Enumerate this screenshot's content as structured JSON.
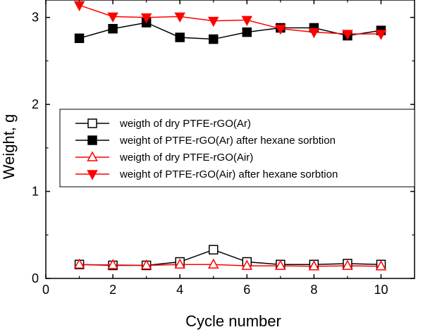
{
  "chart_data": {
    "type": "line",
    "title": "",
    "xlabel": "Cycle number",
    "ylabel": "Weight, g",
    "xlim": [
      0,
      11
    ],
    "ylim": [
      0,
      3.2
    ],
    "xticks": [
      0,
      2,
      4,
      6,
      8,
      10
    ],
    "yticks": [
      0,
      1,
      2,
      3
    ],
    "legend_position": "center",
    "x": [
      1,
      2,
      3,
      4,
      5,
      6,
      7,
      8,
      9,
      10
    ],
    "series": [
      {
        "name": "weigth of dry PTFE-rGO(Ar)",
        "color": "#000000",
        "marker": "square-open",
        "values": [
          0.16,
          0.15,
          0.15,
          0.19,
          0.33,
          0.19,
          0.16,
          0.16,
          0.17,
          0.16
        ]
      },
      {
        "name": "weight of PTFE-rGO(Ar) after hexane sorbtion",
        "color": "#000000",
        "marker": "square-filled",
        "values": [
          2.76,
          2.87,
          2.94,
          2.77,
          2.75,
          2.83,
          2.88,
          2.88,
          2.79,
          2.85
        ]
      },
      {
        "name": "weigth of dry PTFE-rGO(Air)",
        "color": "#ff0000",
        "marker": "triangle-up-open",
        "values": [
          0.16,
          0.155,
          0.15,
          0.16,
          0.16,
          0.145,
          0.145,
          0.14,
          0.145,
          0.14
        ]
      },
      {
        "name": "weight of PTFE-rGO(Air) after hexane sorbtion",
        "color": "#ff0000",
        "marker": "triangle-down-filled",
        "values": [
          3.14,
          3.01,
          3.0,
          3.01,
          2.96,
          2.97,
          2.87,
          2.83,
          2.81,
          2.81
        ]
      }
    ]
  }
}
